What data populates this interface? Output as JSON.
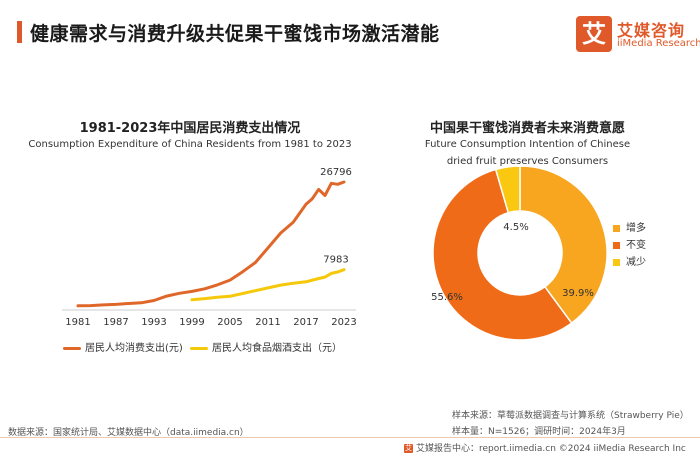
{
  "header": {
    "title": "健康需求与消费升级共促果干蜜饯市场激活潜能",
    "logo_cn": "艾媒咨询",
    "logo_en": "iiMedia Research",
    "logo_mark": "艾",
    "accent_color": "#e0592a"
  },
  "chart_data": [
    {
      "type": "line",
      "title": "1981-2023年中国居民消费支出情况",
      "subtitle": "Consumption Expenditure of China Residents from 1981 to 2023",
      "xlabel": "",
      "ylabel": "",
      "x_ticks": [
        "1981",
        "1987",
        "1993",
        "1999",
        "2005",
        "2011",
        "2017",
        "2023"
      ],
      "x_range": [
        1981,
        2023
      ],
      "y_range": [
        0,
        30000
      ],
      "grid": false,
      "legend_position": "bottom",
      "series": [
        {
          "name": "居民人均消费支出(元)",
          "color": "#e0672a",
          "end_label": "26796",
          "x": [
            1981,
            1983,
            1985,
            1987,
            1989,
            1991,
            1993,
            1995,
            1997,
            1999,
            2001,
            2003,
            2005,
            2007,
            2009,
            2011,
            2013,
            2015,
            2017,
            2018,
            2019,
            2020,
            2021,
            2022,
            2023
          ],
          "values": [
            250,
            300,
            440,
            550,
            760,
            900,
            1390,
            2330,
            2940,
            3350,
            3890,
            4730,
            5770,
            7570,
            9510,
            12670,
            15850,
            18200,
            22000,
            23200,
            25200,
            23900,
            26500,
            26300,
            26796
          ]
        },
        {
          "name": "居民人均食品烟酒支出（元）",
          "color": "#f5c80a",
          "end_label": "7983",
          "x": [
            1999,
            2001,
            2003,
            2005,
            2007,
            2009,
            2011,
            2013,
            2015,
            2017,
            2019,
            2020,
            2021,
            2022,
            2023
          ],
          "values": [
            1550,
            1800,
            2100,
            2300,
            2900,
            3500,
            4100,
            4700,
            5100,
            5400,
            6100,
            6400,
            7200,
            7500,
            7983
          ]
        }
      ]
    },
    {
      "type": "pie",
      "donut": true,
      "title": "中国果干蜜饯消费者未来消费意愿",
      "subtitle": "Future Consumption Intention of Chinese dried fruit preserves Consumers",
      "legend_position": "right",
      "slices": [
        {
          "label": "增多",
          "value": 39.9,
          "display": "39.9%",
          "color": "#f8a51f"
        },
        {
          "label": "不变",
          "value": 55.6,
          "display": "55.6%",
          "color": "#ef6b17"
        },
        {
          "label": "减少",
          "value": 4.5,
          "display": "4.5%",
          "color": "#fac711"
        }
      ]
    }
  ],
  "footer": {
    "source_left": "数据来源：国家统计局、艾媒数据中心（data.iimedia.cn）",
    "sample_source": "样本来源：草莓派数据调查与计算系统（Strawberry Pie）",
    "sample_info": "样本量：N=1526；调研时间：2024年3月",
    "bottom_bar": "艾媒报告中心：report.iimedia.cn    ©2024  iiMedia Research Inc"
  }
}
